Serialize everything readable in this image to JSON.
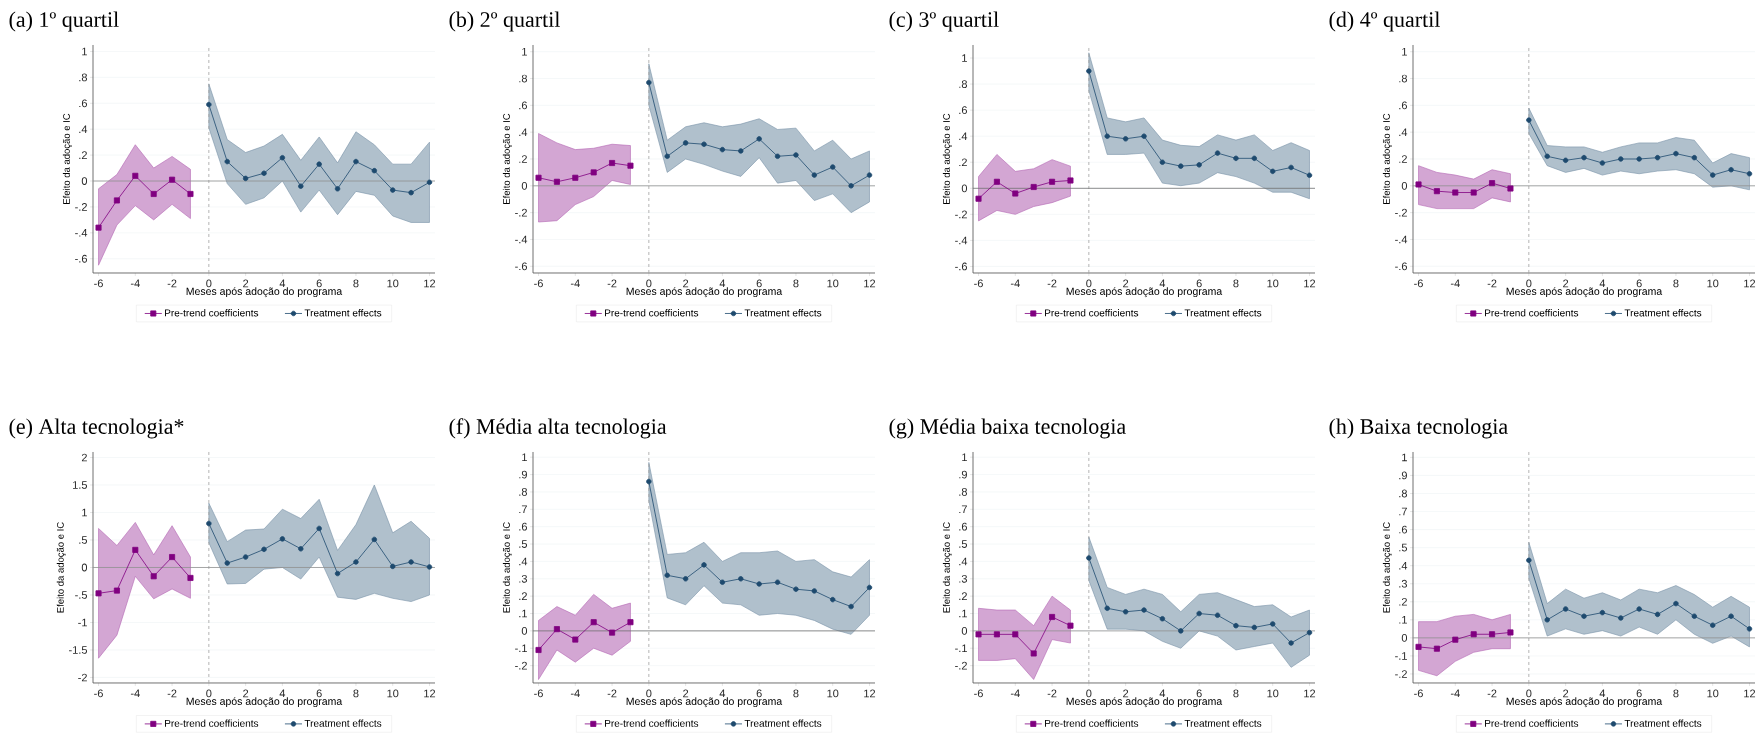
{
  "chart_data": [
    {
      "type": "line",
      "title": "(a) 1º quartil",
      "xlabel": "Meses após adoção do programa",
      "ylabel": "Efeito da adoção e IC",
      "xlim": [
        -6.3,
        12.3
      ],
      "ylim": [
        -0.71,
        1.05
      ],
      "xticks": [
        -6,
        -4,
        -2,
        0,
        2,
        4,
        6,
        8,
        10,
        12
      ],
      "yticks": [
        {
          "value": -0.6,
          "label": "-.6"
        },
        {
          "value": -0.4,
          "label": "-.4"
        },
        {
          "value": -0.2,
          "label": "-.2"
        },
        0,
        {
          "value": 0.2,
          "label": ".2"
        },
        {
          "value": 0.4,
          "label": ".4"
        },
        {
          "value": 0.6,
          "label": ".6"
        },
        {
          "value": 0.8,
          "label": ".8"
        },
        1
      ],
      "grid": "y",
      "legend": "bottom",
      "ref_lines": [
        {
          "axis": "x",
          "value": 0,
          "color": "#a0a0a0",
          "line_style": "dashed"
        },
        {
          "axis": "y",
          "value": 0,
          "color": "#909090"
        }
      ],
      "series": [
        {
          "name": "Pre-trend coefficients",
          "color": "#800080",
          "marker": "square",
          "x": [
            -6,
            -5,
            -4,
            -3,
            -2,
            -1
          ],
          "values": [
            -0.36,
            -0.15,
            0.04,
            -0.1,
            0.01,
            -0.1
          ],
          "lower": [
            -0.65,
            -0.34,
            -0.19,
            -0.3,
            -0.18,
            -0.29
          ],
          "upper": [
            -0.06,
            0.05,
            0.28,
            0.1,
            0.19,
            0.09
          ]
        },
        {
          "name": "Treatment effects",
          "color": "#1e4a6e",
          "marker": "circle",
          "x": [
            0,
            1,
            2,
            3,
            4,
            5,
            6,
            7,
            8,
            9,
            10,
            11,
            12
          ],
          "values": [
            0.59,
            0.15,
            0.02,
            0.06,
            0.18,
            -0.04,
            0.13,
            -0.06,
            0.15,
            0.08,
            -0.07,
            -0.09,
            -0.01
          ],
          "lower": [
            0.41,
            -0.02,
            -0.18,
            -0.13,
            0.0,
            -0.24,
            -0.07,
            -0.26,
            -0.08,
            -0.11,
            -0.27,
            -0.32,
            -0.32
          ],
          "upper": [
            0.75,
            0.32,
            0.22,
            0.27,
            0.36,
            0.16,
            0.34,
            0.14,
            0.38,
            0.28,
            0.13,
            0.13,
            0.3
          ]
        }
      ]
    },
    {
      "type": "line",
      "title": "(b) 2º quartil",
      "xlabel": "Meses após adoção do programa",
      "ylabel": "Efeito da adoção e IC",
      "xlim": [
        -6.3,
        12.3
      ],
      "ylim": [
        -0.65,
        1.05
      ],
      "xticks": [
        -6,
        -4,
        -2,
        0,
        2,
        4,
        6,
        8,
        10,
        12
      ],
      "yticks": [
        {
          "value": -0.6,
          "label": "-.6"
        },
        {
          "value": -0.4,
          "label": "-.4"
        },
        {
          "value": -0.2,
          "label": "-.2"
        },
        0,
        {
          "value": 0.2,
          "label": ".2"
        },
        {
          "value": 0.4,
          "label": ".4"
        },
        {
          "value": 0.6,
          "label": ".6"
        },
        {
          "value": 0.8,
          "label": ".8"
        },
        1
      ],
      "grid": "y",
      "legend": "bottom",
      "ref_lines": [
        {
          "axis": "x",
          "value": 0,
          "color": "#a0a0a0",
          "line_style": "dashed"
        },
        {
          "axis": "y",
          "value": 0,
          "color": "#909090"
        }
      ],
      "series": [
        {
          "name": "Pre-trend coefficients",
          "color": "#800080",
          "marker": "square",
          "x": [
            -6,
            -5,
            -4,
            -3,
            -2,
            -1
          ],
          "values": [
            0.06,
            0.03,
            0.06,
            0.1,
            0.17,
            0.15
          ],
          "lower": [
            -0.27,
            -0.26,
            -0.14,
            -0.08,
            0.04,
            0.01
          ],
          "upper": [
            0.39,
            0.32,
            0.27,
            0.28,
            0.31,
            0.3
          ]
        },
        {
          "name": "Treatment effects",
          "color": "#1e4a6e",
          "marker": "circle",
          "x": [
            0,
            1,
            2,
            3,
            4,
            5,
            6,
            7,
            8,
            9,
            10,
            11,
            12
          ],
          "values": [
            0.77,
            0.22,
            0.32,
            0.31,
            0.27,
            0.26,
            0.35,
            0.22,
            0.23,
            0.08,
            0.14,
            0.0,
            0.08
          ],
          "lower": [
            0.6,
            0.1,
            0.2,
            0.16,
            0.11,
            0.07,
            0.21,
            0.02,
            0.04,
            -0.11,
            -0.06,
            -0.2,
            -0.12
          ],
          "upper": [
            0.91,
            0.34,
            0.44,
            0.47,
            0.44,
            0.46,
            0.5,
            0.42,
            0.43,
            0.26,
            0.34,
            0.2,
            0.26
          ]
        }
      ]
    },
    {
      "type": "line",
      "title": "(c) 3º quartil",
      "xlabel": "Meses após adoção do programa",
      "ylabel": "Efeito da adoção e IC",
      "xlim": [
        -6.3,
        12.3
      ],
      "ylim": [
        -0.65,
        1.1
      ],
      "xticks": [
        -6,
        -4,
        -2,
        0,
        2,
        4,
        6,
        8,
        10,
        12
      ],
      "yticks": [
        {
          "value": -0.6,
          "label": "-.6"
        },
        {
          "value": -0.4,
          "label": "-.4"
        },
        {
          "value": -0.2,
          "label": "-.2"
        },
        0,
        {
          "value": 0.2,
          "label": ".2"
        },
        {
          "value": 0.4,
          "label": ".4"
        },
        {
          "value": 0.6,
          "label": ".6"
        },
        {
          "value": 0.8,
          "label": ".8"
        },
        1
      ],
      "grid": "y",
      "legend": "bottom",
      "ref_lines": [
        {
          "axis": "x",
          "value": 0,
          "color": "#a0a0a0",
          "line_style": "dashed"
        },
        {
          "axis": "y",
          "value": 0,
          "color": "#707070"
        }
      ],
      "series": [
        {
          "name": "Pre-trend coefficients",
          "color": "#800080",
          "marker": "square",
          "x": [
            -6,
            -5,
            -4,
            -3,
            -2,
            -1
          ],
          "values": [
            -0.08,
            0.05,
            -0.04,
            0.01,
            0.05,
            0.06
          ],
          "lower": [
            -0.25,
            -0.17,
            -0.2,
            -0.14,
            -0.11,
            -0.06
          ],
          "upper": [
            0.09,
            0.26,
            0.13,
            0.15,
            0.22,
            0.17
          ]
        },
        {
          "name": "Treatment effects",
          "color": "#1e4a6e",
          "marker": "circle",
          "x": [
            0,
            1,
            2,
            3,
            4,
            5,
            6,
            7,
            8,
            9,
            10,
            11,
            12
          ],
          "values": [
            0.9,
            0.4,
            0.38,
            0.4,
            0.2,
            0.17,
            0.18,
            0.27,
            0.23,
            0.23,
            0.13,
            0.16,
            0.1
          ],
          "lower": [
            0.75,
            0.26,
            0.26,
            0.27,
            0.04,
            0.02,
            0.04,
            0.12,
            0.09,
            0.04,
            -0.03,
            -0.03,
            -0.08
          ],
          "upper": [
            1.04,
            0.54,
            0.51,
            0.54,
            0.37,
            0.33,
            0.32,
            0.41,
            0.37,
            0.41,
            0.29,
            0.35,
            0.29
          ]
        }
      ]
    },
    {
      "type": "line",
      "title": "(d) 4º quartil",
      "xlabel": "Meses após adoção do programa",
      "ylabel": "Efeito da adoção e IC",
      "xlim": [
        -6.3,
        12.3
      ],
      "ylim": [
        -0.65,
        1.05
      ],
      "xticks": [
        -6,
        -4,
        -2,
        0,
        2,
        4,
        6,
        8,
        10,
        12
      ],
      "yticks": [
        {
          "value": -0.6,
          "label": "-.6"
        },
        {
          "value": -0.4,
          "label": "-.4"
        },
        {
          "value": -0.2,
          "label": "-.2"
        },
        0,
        {
          "value": 0.2,
          "label": ".2"
        },
        {
          "value": 0.4,
          "label": ".4"
        },
        {
          "value": 0.6,
          "label": ".6"
        },
        {
          "value": 0.8,
          "label": ".8"
        },
        1
      ],
      "grid": "y",
      "legend": "bottom",
      "ref_lines": [
        {
          "axis": "x",
          "value": 0,
          "color": "#a0a0a0",
          "line_style": "dashed"
        },
        {
          "axis": "y",
          "value": 0,
          "color": "#909090"
        }
      ],
      "series": [
        {
          "name": "Pre-trend coefficients",
          "color": "#800080",
          "marker": "square",
          "x": [
            -6,
            -5,
            -4,
            -3,
            -2,
            -1
          ],
          "values": [
            0.01,
            -0.04,
            -0.05,
            -0.05,
            0.02,
            -0.02
          ],
          "lower": [
            -0.14,
            -0.17,
            -0.17,
            -0.17,
            -0.09,
            -0.12
          ],
          "upper": [
            0.15,
            0.1,
            0.08,
            0.05,
            0.12,
            0.09
          ]
        },
        {
          "name": "Treatment effects",
          "color": "#1e4a6e",
          "marker": "circle",
          "x": [
            0,
            1,
            2,
            3,
            4,
            5,
            6,
            7,
            8,
            9,
            10,
            11,
            12
          ],
          "values": [
            0.49,
            0.22,
            0.19,
            0.21,
            0.17,
            0.2,
            0.2,
            0.21,
            0.24,
            0.21,
            0.08,
            0.12,
            0.09
          ],
          "lower": [
            0.39,
            0.15,
            0.1,
            0.13,
            0.08,
            0.11,
            0.09,
            0.11,
            0.12,
            0.09,
            -0.01,
            0.0,
            -0.03
          ],
          "upper": [
            0.58,
            0.3,
            0.29,
            0.29,
            0.25,
            0.29,
            0.32,
            0.32,
            0.36,
            0.34,
            0.17,
            0.24,
            0.21
          ]
        }
      ]
    },
    {
      "type": "line",
      "title": "(e) Alta tecnologia*",
      "xlabel": "Meses após adoção do programa",
      "ylabel": "Efeito da adoção e IC",
      "xlim": [
        -6.3,
        12.3
      ],
      "ylim": [
        -2.1,
        2.1
      ],
      "xticks": [
        -6,
        -4,
        -2,
        0,
        2,
        4,
        6,
        8,
        10,
        12
      ],
      "yticks": [
        -2,
        -1.5,
        -1,
        {
          "value": -0.5,
          "label": "-.5"
        },
        0,
        {
          "value": 0.5,
          "label": ".5"
        },
        1,
        1.5,
        2
      ],
      "grid": "y",
      "legend": "bottom",
      "ref_lines": [
        {
          "axis": "x",
          "value": 0,
          "color": "#a0a0a0",
          "line_style": "dashed"
        },
        {
          "axis": "y",
          "value": 0,
          "color": "#909090"
        }
      ],
      "series": [
        {
          "name": "Pre-trend coefficients",
          "color": "#800080",
          "marker": "square",
          "x": [
            -6,
            -5,
            -4,
            -3,
            -2,
            -1
          ],
          "values": [
            -0.47,
            -0.42,
            0.32,
            -0.16,
            0.19,
            -0.19
          ],
          "lower": [
            -1.65,
            -1.23,
            -0.16,
            -0.57,
            -0.39,
            -0.56
          ],
          "upper": [
            0.71,
            0.4,
            0.82,
            0.23,
            0.76,
            0.19
          ]
        },
        {
          "name": "Treatment effects",
          "color": "#1e4a6e",
          "marker": "circle",
          "x": [
            0,
            1,
            2,
            3,
            4,
            5,
            6,
            7,
            8,
            9,
            10,
            11,
            12
          ],
          "values": [
            0.8,
            0.08,
            0.19,
            0.33,
            0.52,
            0.34,
            0.71,
            -0.11,
            0.1,
            0.51,
            0.02,
            0.1,
            0.01
          ],
          "lower": [
            0.45,
            -0.3,
            -0.29,
            -0.03,
            0.0,
            -0.21,
            0.19,
            -0.54,
            -0.58,
            -0.47,
            -0.56,
            -0.62,
            -0.5
          ],
          "upper": [
            1.17,
            0.47,
            0.68,
            0.7,
            1.06,
            0.89,
            1.24,
            0.31,
            0.78,
            1.5,
            0.63,
            0.84,
            0.53
          ]
        }
      ]
    },
    {
      "type": "line",
      "title": "(f) Média alta tecnologia",
      "xlabel": "Meses após adoção do programa",
      "ylabel": "Efeito da adoção e IC",
      "xlim": [
        -6.3,
        12.3
      ],
      "ylim": [
        -0.3,
        1.03
      ],
      "xticks": [
        -6,
        -4,
        -2,
        0,
        2,
        4,
        6,
        8,
        10,
        12
      ],
      "yticks": [
        {
          "value": -0.2,
          "label": "-.2"
        },
        {
          "value": -0.1,
          "label": "-.1"
        },
        0,
        {
          "value": 0.1,
          "label": ".1"
        },
        {
          "value": 0.2,
          "label": ".2"
        },
        {
          "value": 0.3,
          "label": ".3"
        },
        {
          "value": 0.4,
          "label": ".4"
        },
        {
          "value": 0.5,
          "label": ".5"
        },
        {
          "value": 0.6,
          "label": ".6"
        },
        {
          "value": 0.7,
          "label": ".7"
        },
        {
          "value": 0.8,
          "label": ".8"
        },
        {
          "value": 0.9,
          "label": ".9"
        },
        1
      ],
      "grid": "y",
      "legend": "bottom",
      "ref_lines": [
        {
          "axis": "x",
          "value": 0,
          "color": "#a0a0a0",
          "line_style": "dashed"
        },
        {
          "axis": "y",
          "value": 0,
          "color": "#707070"
        }
      ],
      "series": [
        {
          "name": "Pre-trend coefficients",
          "color": "#800080",
          "marker": "square",
          "x": [
            -6,
            -5,
            -4,
            -3,
            -2,
            -1
          ],
          "values": [
            -0.11,
            0.01,
            -0.05,
            0.05,
            -0.01,
            0.05
          ],
          "lower": [
            -0.28,
            -0.11,
            -0.18,
            -0.1,
            -0.14,
            -0.06
          ],
          "upper": [
            0.06,
            0.14,
            0.09,
            0.21,
            0.13,
            0.16
          ]
        },
        {
          "name": "Treatment effects",
          "color": "#1e4a6e",
          "marker": "circle",
          "x": [
            0,
            1,
            2,
            3,
            4,
            5,
            6,
            7,
            8,
            9,
            10,
            11,
            12
          ],
          "values": [
            0.86,
            0.32,
            0.3,
            0.38,
            0.28,
            0.3,
            0.27,
            0.28,
            0.24,
            0.23,
            0.18,
            0.14,
            0.25
          ],
          "lower": [
            0.75,
            0.19,
            0.15,
            0.26,
            0.16,
            0.15,
            0.09,
            0.1,
            0.09,
            0.06,
            0.01,
            -0.02,
            0.09
          ],
          "upper": [
            0.97,
            0.44,
            0.45,
            0.51,
            0.4,
            0.45,
            0.45,
            0.46,
            0.4,
            0.41,
            0.34,
            0.31,
            0.41
          ]
        }
      ]
    },
    {
      "type": "line",
      "title": "(g) Média baixa tecnologia",
      "xlabel": "Meses após adoção do programa",
      "ylabel": "Efeito da adoção e IC",
      "xlim": [
        -6.3,
        12.3
      ],
      "ylim": [
        -0.3,
        1.03
      ],
      "xticks": [
        -6,
        -4,
        -2,
        0,
        2,
        4,
        6,
        8,
        10,
        12
      ],
      "yticks": [
        {
          "value": -0.2,
          "label": "-.2"
        },
        {
          "value": -0.1,
          "label": "-.1"
        },
        0,
        {
          "value": 0.1,
          "label": ".1"
        },
        {
          "value": 0.2,
          "label": ".2"
        },
        {
          "value": 0.3,
          "label": ".3"
        },
        {
          "value": 0.4,
          "label": ".4"
        },
        {
          "value": 0.5,
          "label": ".5"
        },
        {
          "value": 0.6,
          "label": ".6"
        },
        {
          "value": 0.7,
          "label": ".7"
        },
        {
          "value": 0.8,
          "label": ".8"
        },
        {
          "value": 0.9,
          "label": ".9"
        },
        1
      ],
      "grid": "y",
      "legend": "bottom",
      "ref_lines": [
        {
          "axis": "x",
          "value": 0,
          "color": "#a0a0a0",
          "line_style": "dashed"
        },
        {
          "axis": "y",
          "value": 0,
          "color": "#909090"
        }
      ],
      "series": [
        {
          "name": "Pre-trend coefficients",
          "color": "#800080",
          "marker": "square",
          "x": [
            -6,
            -5,
            -4,
            -3,
            -2,
            -1
          ],
          "values": [
            -0.02,
            -0.02,
            -0.02,
            -0.13,
            0.08,
            0.03
          ],
          "lower": [
            -0.17,
            -0.17,
            -0.16,
            -0.28,
            -0.05,
            -0.07
          ],
          "upper": [
            0.13,
            0.12,
            0.12,
            0.03,
            0.2,
            0.12
          ]
        },
        {
          "name": "Treatment effects",
          "color": "#1e4a6e",
          "marker": "circle",
          "x": [
            0,
            1,
            2,
            3,
            4,
            5,
            6,
            7,
            8,
            9,
            10,
            11,
            12
          ],
          "values": [
            0.42,
            0.13,
            0.11,
            0.12,
            0.07,
            0.0,
            0.1,
            0.09,
            0.03,
            0.02,
            0.04,
            -0.07,
            -0.01
          ],
          "lower": [
            0.29,
            0.01,
            0.01,
            0.0,
            -0.06,
            -0.1,
            0.0,
            -0.03,
            -0.11,
            -0.09,
            -0.07,
            -0.21,
            -0.14
          ],
          "upper": [
            0.54,
            0.25,
            0.21,
            0.24,
            0.21,
            0.11,
            0.21,
            0.22,
            0.18,
            0.14,
            0.15,
            0.08,
            0.12
          ]
        }
      ]
    },
    {
      "type": "line",
      "title": "(h) Baixa tecnologia",
      "xlabel": "Meses após adoção do programa",
      "ylabel": "Efeito da adoção e IC",
      "xlim": [
        -6.3,
        12.3
      ],
      "ylim": [
        -0.25,
        1.03
      ],
      "xticks": [
        -6,
        -4,
        -2,
        0,
        2,
        4,
        6,
        8,
        10,
        12
      ],
      "yticks": [
        {
          "value": -0.2,
          "label": "-.2"
        },
        {
          "value": -0.1,
          "label": "-.1"
        },
        0,
        {
          "value": 0.1,
          "label": ".1"
        },
        {
          "value": 0.2,
          "label": ".2"
        },
        {
          "value": 0.3,
          "label": ".3"
        },
        {
          "value": 0.4,
          "label": ".4"
        },
        {
          "value": 0.5,
          "label": ".5"
        },
        {
          "value": 0.6,
          "label": ".6"
        },
        {
          "value": 0.7,
          "label": ".7"
        },
        {
          "value": 0.8,
          "label": ".8"
        },
        {
          "value": 0.9,
          "label": ".9"
        },
        1
      ],
      "grid": "y",
      "legend": "bottom",
      "ref_lines": [
        {
          "axis": "x",
          "value": 0,
          "color": "#a0a0a0",
          "line_style": "dashed"
        },
        {
          "axis": "y",
          "value": 0,
          "color": "#909090"
        }
      ],
      "series": [
        {
          "name": "Pre-trend coefficients",
          "color": "#800080",
          "marker": "square",
          "x": [
            -6,
            -5,
            -4,
            -3,
            -2,
            -1
          ],
          "values": [
            -0.05,
            -0.06,
            -0.01,
            0.02,
            0.02,
            0.03
          ],
          "lower": [
            -0.18,
            -0.21,
            -0.13,
            -0.08,
            -0.06,
            -0.06
          ],
          "upper": [
            0.09,
            0.09,
            0.12,
            0.13,
            0.1,
            0.13
          ]
        },
        {
          "name": "Treatment effects",
          "color": "#1e4a6e",
          "marker": "circle",
          "x": [
            0,
            1,
            2,
            3,
            4,
            5,
            6,
            7,
            8,
            9,
            10,
            11,
            12
          ],
          "values": [
            0.43,
            0.1,
            0.16,
            0.12,
            0.14,
            0.11,
            0.16,
            0.13,
            0.19,
            0.12,
            0.07,
            0.12,
            0.05
          ],
          "lower": [
            0.33,
            0.01,
            0.05,
            0.02,
            0.04,
            0.01,
            0.06,
            0.02,
            0.1,
            0.02,
            -0.03,
            0.01,
            -0.05
          ],
          "upper": [
            0.53,
            0.19,
            0.27,
            0.22,
            0.25,
            0.21,
            0.27,
            0.25,
            0.29,
            0.24,
            0.17,
            0.23,
            0.17
          ]
        }
      ]
    }
  ]
}
